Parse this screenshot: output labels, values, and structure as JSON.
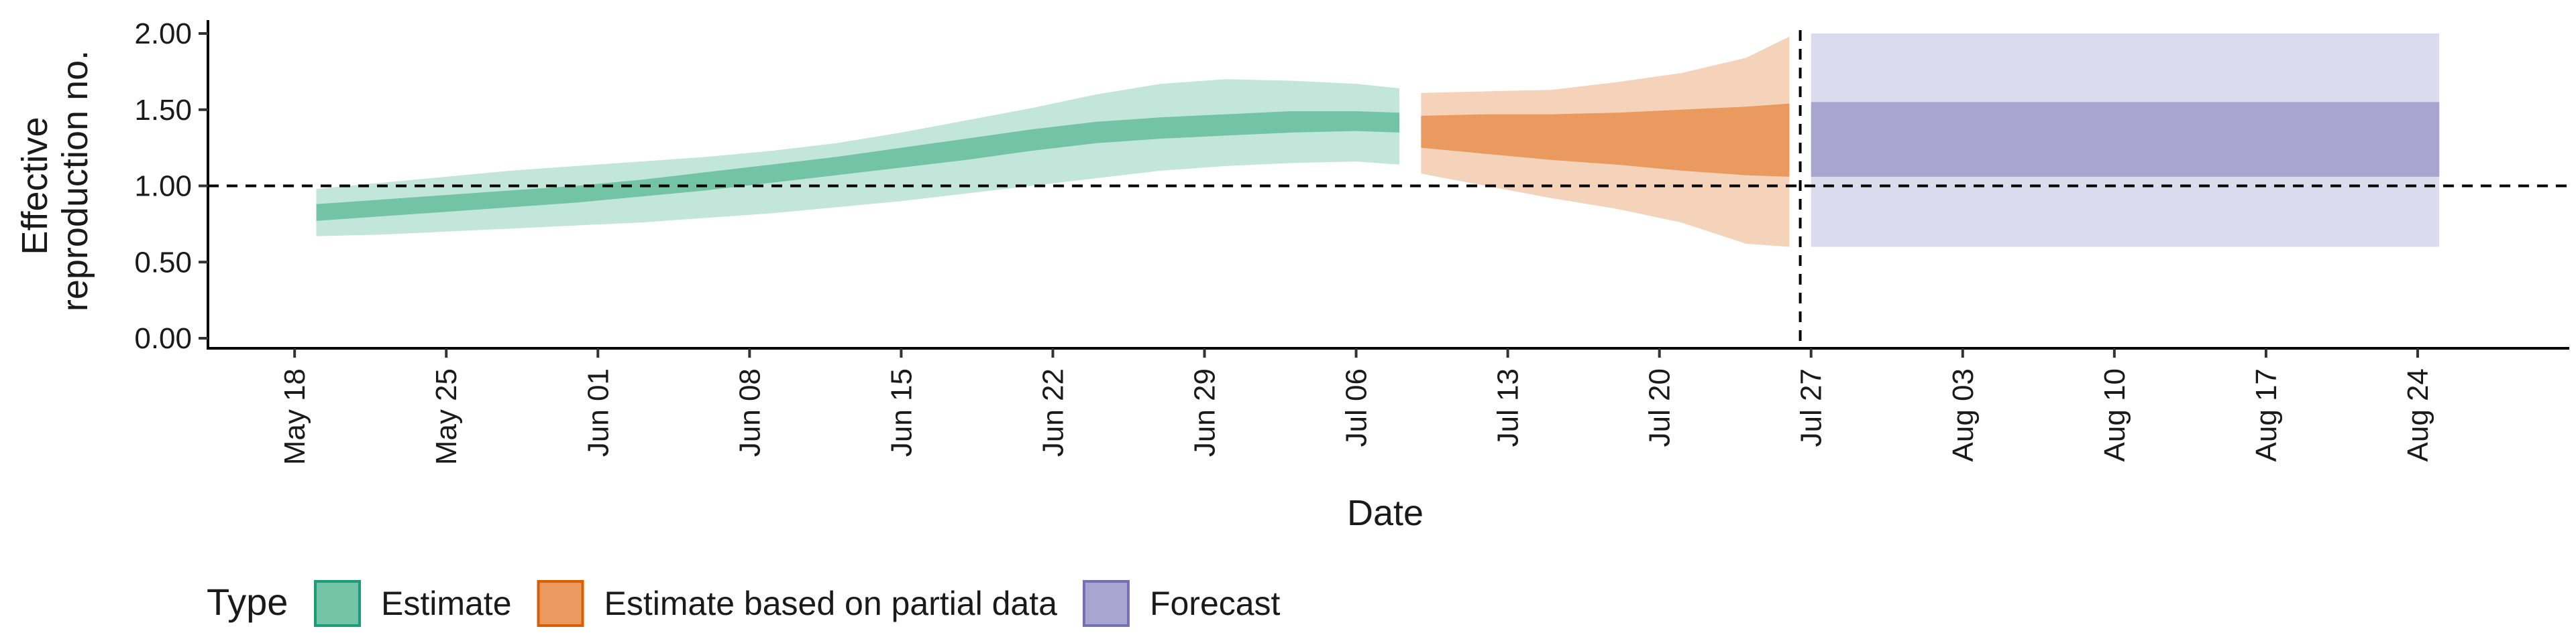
{
  "chart_data": {
    "type": "area",
    "title": "",
    "xlabel": "Date",
    "ylabel_lines": [
      "Effective",
      "reproduction no."
    ],
    "ylim": [
      0,
      2
    ],
    "y_ticks": [
      "0.00",
      "0.50",
      "1.00",
      "1.50",
      "2.00"
    ],
    "x_ticks": [
      {
        "date": "2020-05-18",
        "label": "May 18"
      },
      {
        "date": "2020-05-25",
        "label": "May 25"
      },
      {
        "date": "2020-06-01",
        "label": "Jun 01"
      },
      {
        "date": "2020-06-08",
        "label": "Jun 08"
      },
      {
        "date": "2020-06-15",
        "label": "Jun 15"
      },
      {
        "date": "2020-06-22",
        "label": "Jun 22"
      },
      {
        "date": "2020-06-29",
        "label": "Jun 29"
      },
      {
        "date": "2020-07-06",
        "label": "Jul 06"
      },
      {
        "date": "2020-07-13",
        "label": "Jul 13"
      },
      {
        "date": "2020-07-20",
        "label": "Jul 20"
      },
      {
        "date": "2020-07-27",
        "label": "Jul 27"
      },
      {
        "date": "2020-08-03",
        "label": "Aug 03"
      },
      {
        "date": "2020-08-10",
        "label": "Aug 10"
      },
      {
        "date": "2020-08-17",
        "label": "Aug 17"
      },
      {
        "date": "2020-08-24",
        "label": "Aug 24"
      }
    ],
    "xlim": [
      "2020-05-14",
      "2020-08-31"
    ],
    "reference_line_y": 1.0,
    "reference_line_x": "2020-07-26",
    "grid": false,
    "legend": {
      "title": "Type",
      "position": "bottom",
      "entries": [
        {
          "label": "Estimate",
          "fill": "#73c3a7",
          "stroke": "#1b9e77"
        },
        {
          "label": "Estimate based on partial data",
          "fill": "#ea9a5e",
          "stroke": "#d95f02"
        },
        {
          "label": "Forecast",
          "fill": "#a8a5d1",
          "stroke": "#7570b3"
        }
      ]
    },
    "series": [
      {
        "type_label": "Estimate",
        "outer_color": "#c3e6da",
        "inner_color": "#73c3a7",
        "x": [
          "2020-05-19",
          "2020-05-22",
          "2020-05-25",
          "2020-05-28",
          "2020-05-31",
          "2020-06-03",
          "2020-06-06",
          "2020-06-09",
          "2020-06-12",
          "2020-06-15",
          "2020-06-18",
          "2020-06-21",
          "2020-06-24",
          "2020-06-27",
          "2020-06-30",
          "2020-07-03",
          "2020-07-06",
          "2020-07-08"
        ],
        "outer_lower": [
          0.67,
          0.68,
          0.7,
          0.72,
          0.74,
          0.76,
          0.79,
          0.82,
          0.86,
          0.9,
          0.95,
          1.0,
          1.05,
          1.1,
          1.13,
          1.15,
          1.16,
          1.14
        ],
        "outer_upper": [
          0.98,
          1.02,
          1.06,
          1.1,
          1.13,
          1.16,
          1.19,
          1.23,
          1.28,
          1.35,
          1.43,
          1.51,
          1.6,
          1.67,
          1.7,
          1.69,
          1.67,
          1.64
        ],
        "inner_lower": [
          0.77,
          0.8,
          0.83,
          0.86,
          0.89,
          0.93,
          0.97,
          1.02,
          1.07,
          1.12,
          1.17,
          1.23,
          1.28,
          1.31,
          1.33,
          1.35,
          1.36,
          1.35
        ],
        "inner_upper": [
          0.88,
          0.91,
          0.94,
          0.97,
          1.0,
          1.04,
          1.09,
          1.14,
          1.19,
          1.25,
          1.31,
          1.37,
          1.42,
          1.45,
          1.47,
          1.49,
          1.49,
          1.48
        ]
      },
      {
        "type_label": "Estimate based on partial data",
        "outer_color": "#f5d3bb",
        "inner_color": "#ea9a5e",
        "x": [
          "2020-07-09",
          "2020-07-12",
          "2020-07-15",
          "2020-07-18",
          "2020-07-21",
          "2020-07-24",
          "2020-07-26"
        ],
        "outer_lower": [
          1.08,
          1.0,
          0.92,
          0.85,
          0.76,
          0.62,
          0.6
        ],
        "outer_upper": [
          1.61,
          1.62,
          1.63,
          1.68,
          1.74,
          1.84,
          1.98
        ],
        "inner_lower": [
          1.25,
          1.21,
          1.17,
          1.14,
          1.1,
          1.07,
          1.06
        ],
        "inner_upper": [
          1.46,
          1.47,
          1.47,
          1.48,
          1.5,
          1.52,
          1.54
        ]
      },
      {
        "type_label": "Forecast",
        "outer_color": "#dcdbed",
        "inner_color": "#a8a5d1",
        "x": [
          "2020-07-27",
          "2020-08-25"
        ],
        "outer_lower": [
          0.6,
          0.6
        ],
        "outer_upper": [
          2.0,
          2.0
        ],
        "inner_lower": [
          1.06,
          1.06
        ],
        "inner_upper": [
          1.55,
          1.55
        ]
      }
    ]
  }
}
